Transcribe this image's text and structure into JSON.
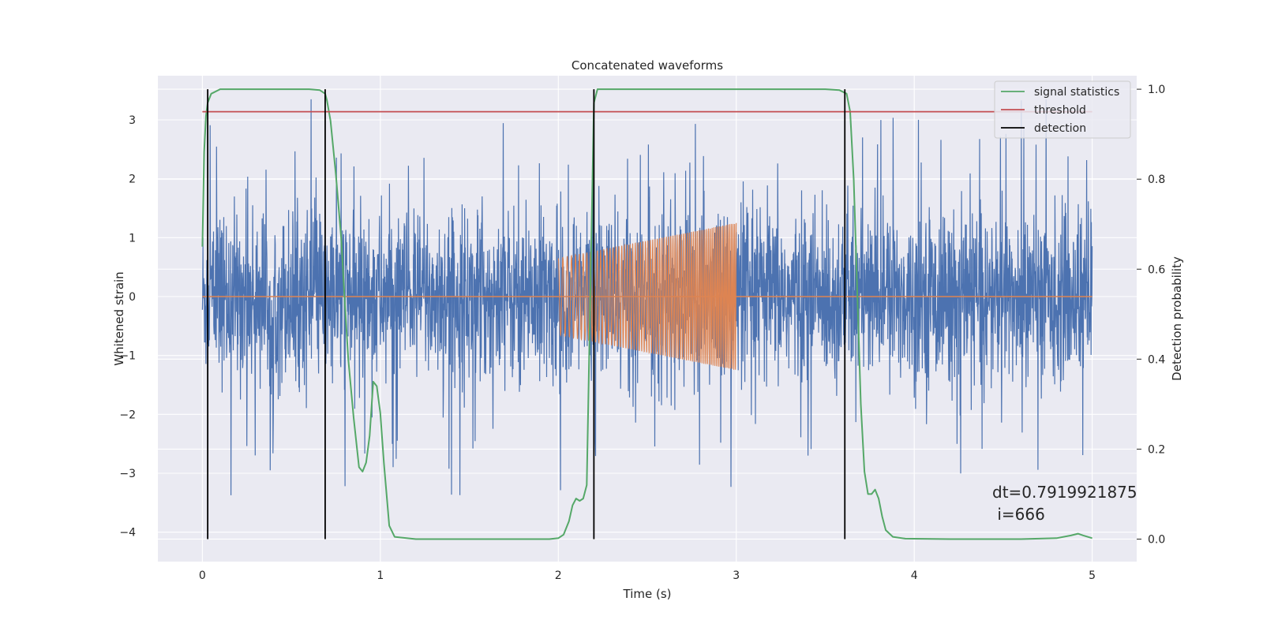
{
  "chart_data": {
    "type": "line",
    "title": "Concatenated waveforms",
    "xlabel": "Time (s)",
    "ylabel": "Whitened strain",
    "y2label": "Detection probability",
    "xlim": [
      -0.25,
      5.25
    ],
    "ylim": [
      -4.5,
      3.75
    ],
    "y2lim": [
      -0.05,
      1.03
    ],
    "xticks": [
      0,
      1,
      2,
      3,
      4,
      5
    ],
    "yticks": [
      -4,
      -3,
      -2,
      -1,
      0,
      1,
      2,
      3
    ],
    "y2ticks": [
      0.0,
      0.2,
      0.4,
      0.6,
      0.8,
      1.0
    ],
    "grid": true,
    "legend_position": "top-right",
    "colors": {
      "noise": "#4c72b0",
      "injection": "#dd8452",
      "signal_statistics": "#55a868",
      "threshold": "#c44e52",
      "detection": "#000000",
      "background": "#eaeaf2",
      "grid": "#ffffff"
    },
    "noise": {
      "x_range": [
        0,
        5
      ],
      "typical_range": [
        -1.45,
        1.45
      ],
      "extreme_range": [
        -3.9,
        3.35
      ]
    },
    "injection": {
      "x_range": [
        2.0,
        3.0
      ],
      "amplitude_start": 0.65,
      "amplitude_end": 1.25,
      "baseline": 0
    },
    "series": [
      {
        "name": "signal statistics",
        "axis": "right",
        "x": [
          0.0,
          0.01,
          0.02,
          0.03,
          0.05,
          0.1,
          0.2,
          0.4,
          0.6,
          0.66,
          0.69,
          0.7,
          0.72,
          0.75,
          0.78,
          0.8,
          0.82,
          0.85,
          0.88,
          0.9,
          0.92,
          0.94,
          0.96,
          0.98,
          1.0,
          1.02,
          1.05,
          1.08,
          1.2,
          1.5,
          1.8,
          1.95,
          2.0,
          2.03,
          2.06,
          2.08,
          2.1,
          2.12,
          2.14,
          2.16,
          2.18,
          2.2,
          2.22,
          2.25,
          2.3,
          2.5,
          3.0,
          3.5,
          3.58,
          3.62,
          3.64,
          3.66,
          3.68,
          3.7,
          3.72,
          3.74,
          3.76,
          3.78,
          3.8,
          3.82,
          3.84,
          3.88,
          3.95,
          4.2,
          4.6,
          4.8,
          4.88,
          4.92,
          4.95,
          5.0
        ],
        "y": [
          0.65,
          0.86,
          0.94,
          0.97,
          0.99,
          1.0,
          1.0,
          1.0,
          1.0,
          0.998,
          0.99,
          0.975,
          0.93,
          0.81,
          0.67,
          0.53,
          0.4,
          0.27,
          0.16,
          0.15,
          0.17,
          0.23,
          0.35,
          0.34,
          0.28,
          0.17,
          0.03,
          0.005,
          0.0,
          0.0,
          0.0,
          0.0,
          0.002,
          0.01,
          0.04,
          0.075,
          0.09,
          0.085,
          0.09,
          0.12,
          0.55,
          0.97,
          1.0,
          1.0,
          1.0,
          1.0,
          1.0,
          1.0,
          0.998,
          0.99,
          0.95,
          0.8,
          0.55,
          0.3,
          0.15,
          0.1,
          0.1,
          0.11,
          0.09,
          0.05,
          0.02,
          0.005,
          0.001,
          0.0,
          0.0,
          0.002,
          0.008,
          0.012,
          0.008,
          0.002
        ]
      },
      {
        "name": "threshold",
        "axis": "right",
        "x": [
          0,
          5
        ],
        "y": [
          0.95,
          0.95
        ]
      },
      {
        "name": "detection",
        "axis": "right",
        "vlines": [
          0.03,
          0.69,
          2.2,
          3.61
        ],
        "ymin": 0.0,
        "ymax": 1.0
      }
    ],
    "annotation": {
      "dt_text": "dt=0.7919921875",
      "i_text": " i=666"
    }
  }
}
